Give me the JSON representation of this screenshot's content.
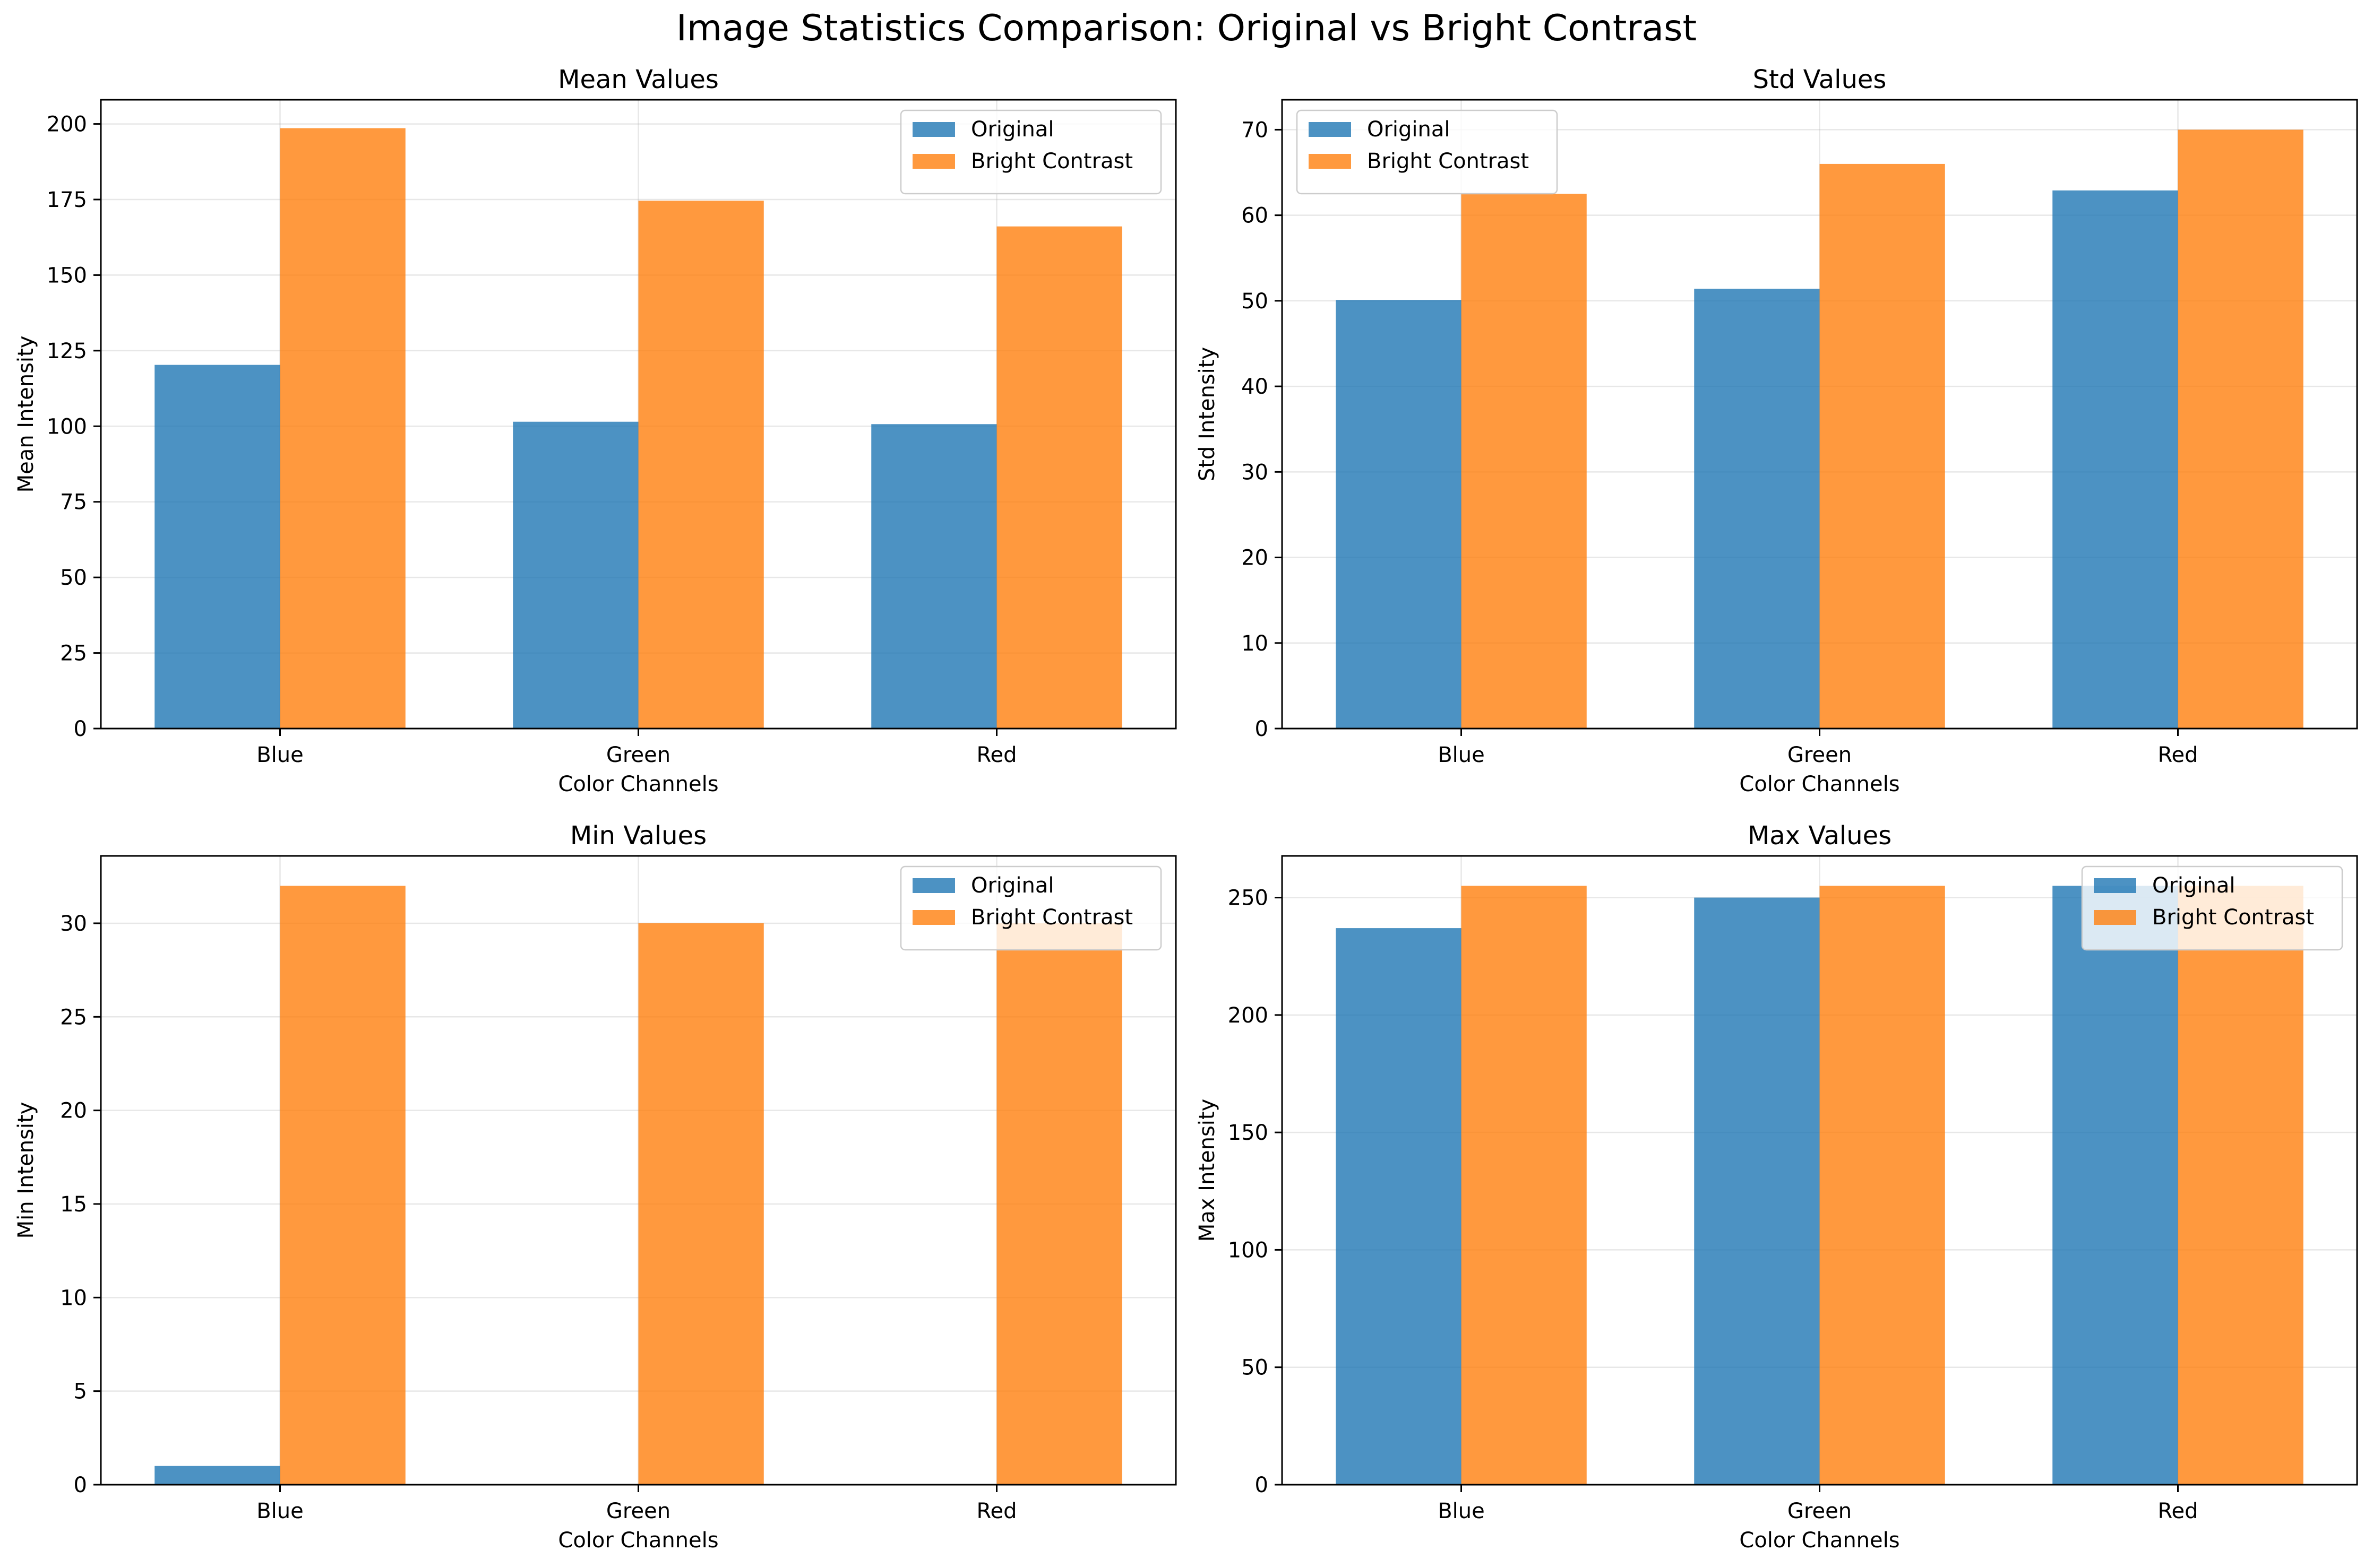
{
  "figure_title": "Image Statistics Comparison: Original vs Bright Contrast",
  "colors": {
    "Original": "#1f77b4",
    "Bright Contrast": "#ff7f0e",
    "grid": "#b0b0b0"
  },
  "chart_data": [
    {
      "type": "bar",
      "title": "Mean Values",
      "xlabel": "Color Channels",
      "ylabel": "Mean Intensity",
      "categories": [
        "Blue",
        "Green",
        "Red"
      ],
      "series": [
        {
          "name": "Original",
          "values": [
            120.3,
            101.5,
            100.7
          ]
        },
        {
          "name": "Bright Contrast",
          "values": [
            198.6,
            174.6,
            166.1
          ]
        }
      ],
      "ylim": [
        0,
        208
      ],
      "yticks": [
        0,
        25,
        50,
        75,
        100,
        125,
        150,
        175,
        200
      ],
      "grid": true,
      "legend": "upper right"
    },
    {
      "type": "bar",
      "title": "Std Values",
      "xlabel": "Color Channels",
      "ylabel": "Std Intensity",
      "categories": [
        "Blue",
        "Green",
        "Red"
      ],
      "series": [
        {
          "name": "Original",
          "values": [
            50.1,
            51.4,
            62.9
          ]
        },
        {
          "name": "Bright Contrast",
          "values": [
            62.5,
            66.0,
            70.0
          ]
        }
      ],
      "ylim": [
        0,
        73.5
      ],
      "yticks": [
        0,
        10,
        20,
        30,
        40,
        50,
        60,
        70
      ],
      "grid": true,
      "legend": "upper left"
    },
    {
      "type": "bar",
      "title": "Min Values",
      "xlabel": "Color Channels",
      "ylabel": "Min Intensity",
      "categories": [
        "Blue",
        "Green",
        "Red"
      ],
      "series": [
        {
          "name": "Original",
          "values": [
            1,
            0,
            0
          ]
        },
        {
          "name": "Bright Contrast",
          "values": [
            32,
            30,
            30
          ]
        }
      ],
      "ylim": [
        0,
        33.6
      ],
      "yticks": [
        0,
        5,
        10,
        15,
        20,
        25,
        30
      ],
      "grid": true,
      "legend": "upper right"
    },
    {
      "type": "bar",
      "title": "Max Values",
      "xlabel": "Color Channels",
      "ylabel": "Max Intensity",
      "categories": [
        "Blue",
        "Green",
        "Red"
      ],
      "series": [
        {
          "name": "Original",
          "values": [
            237,
            250,
            255
          ]
        },
        {
          "name": "Bright Contrast",
          "values": [
            255,
            255,
            255
          ]
        }
      ],
      "ylim": [
        0,
        267.75
      ],
      "yticks": [
        0,
        50,
        100,
        150,
        200,
        250
      ],
      "grid": true,
      "legend": "upper right"
    }
  ]
}
